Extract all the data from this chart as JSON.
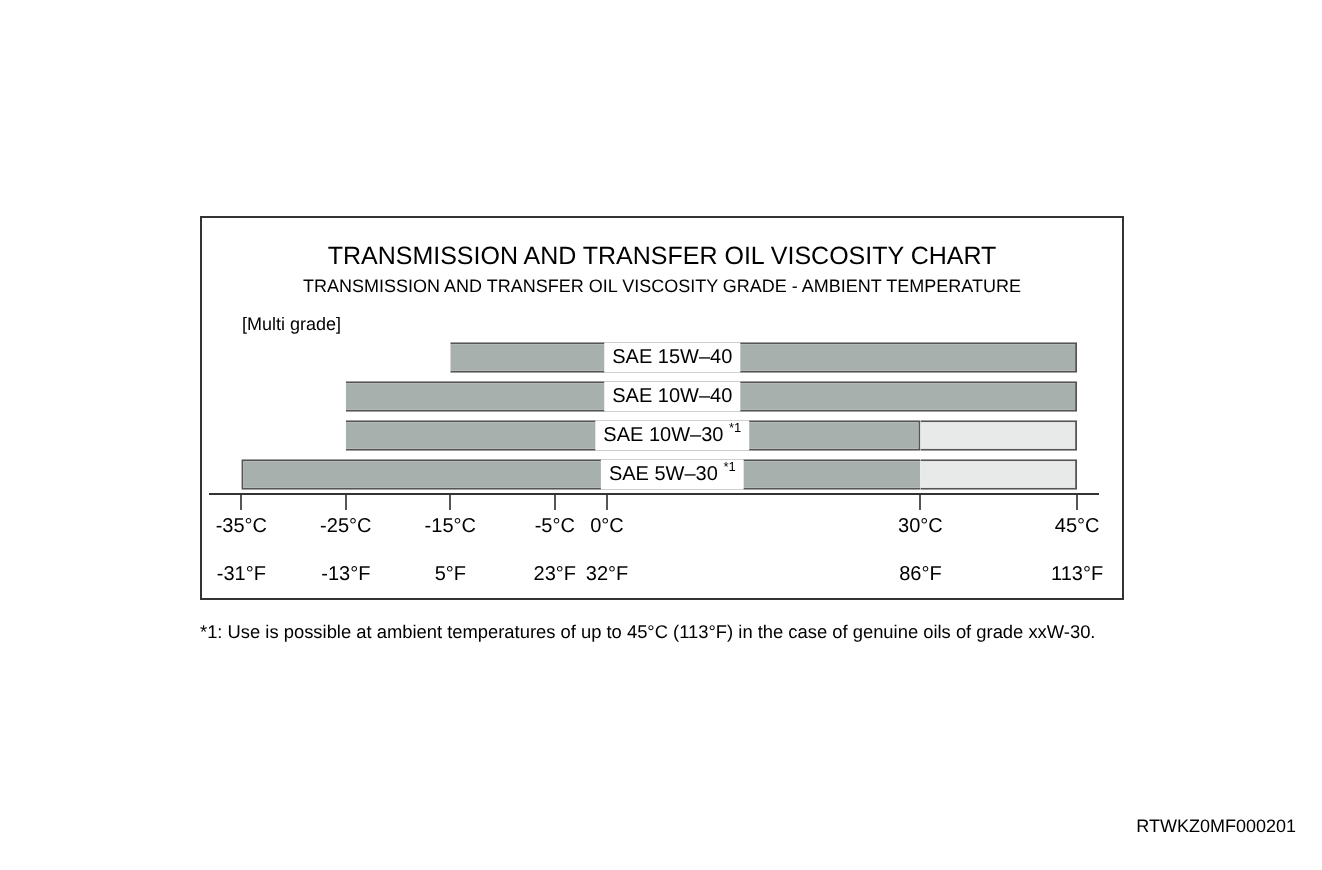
{
  "chart_data": {
    "type": "bar",
    "orientation": "horizontal",
    "title": "TRANSMISSION AND TRANSFER OIL VISCOSITY CHART",
    "subtitle": "TRANSMISSION AND TRANSFER OIL VISCOSITY GRADE - AMBIENT TEMPERATURE",
    "annotations": [
      "[Multi grade]",
      "*1: Use is possible at ambient temperatures of up to 45°C (113°F) in the case of genuine oils of grade xxW-30.",
      "RTWKZ0MF000201"
    ],
    "categories": [
      "SAE 15W–40",
      "SAE 10W–40",
      "SAE 10W–30 $^{*1}$",
      "SAE 5W–30 $^{*1}$"
    ],
    "series": [
      {
        "color": "#a8b0ad",
        "base": [
          -15,
          -25,
          -25,
          -35
        ],
        "values": [
          60,
          70,
          55,
          65
        ]
      },
      {
        "color": "#e8eaea",
        "base": [
          null,
          null,
          30,
          30
        ],
        "values": [
          null,
          null,
          15,
          15
        ]
      }
    ],
    "xlim": [
      -38,
      47
    ],
    "xticks": [
      {
        "value": -35,
        "label": "-35°C"
      },
      {
        "value": -25,
        "label": "-25°C"
      },
      {
        "value": -15,
        "label": "-15°C"
      },
      {
        "value": -5,
        "label": "-5°C"
      },
      {
        "value": 0,
        "label": "0°C"
      },
      {
        "value": 30,
        "label": "30°C"
      },
      {
        "value": 45,
        "label": "45°C"
      }
    ],
    "x2lim": [
      -36.4,
      116.6
    ],
    "x2ticks": [
      {
        "value": -31,
        "label": "-31°F"
      },
      {
        "value": -13,
        "label": "-13°F"
      },
      {
        "value": 5,
        "label": "5°F"
      },
      {
        "value": 23,
        "label": "23°F"
      },
      {
        "value": 32,
        "label": "32°F"
      },
      {
        "value": 86,
        "label": "86°F"
      },
      {
        "value": 113,
        "label": "113°F"
      }
    ],
    "tick_labels": "x"
  }
}
